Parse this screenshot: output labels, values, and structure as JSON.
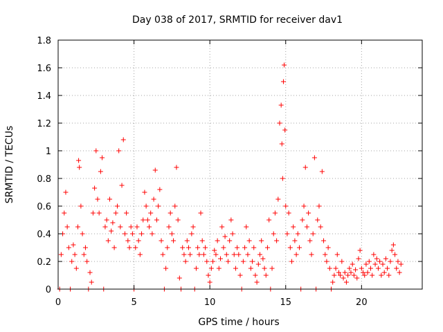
{
  "colors": {
    "series": "#ff0000",
    "axis": "#000000",
    "grid": "#a0a0a0"
  },
  "chart_data": {
    "type": "scatter",
    "title": "Day 038 of 2017, SRMTID for receiver dav1",
    "xlabel": "GPS time / hours",
    "ylabel": "SRMTID / TECUs",
    "xlim": [
      0,
      24
    ],
    "ylim": [
      0,
      1.8
    ],
    "xticks": [
      0,
      5,
      10,
      15,
      20
    ],
    "yticks": [
      0,
      0.2,
      0.4,
      0.6,
      0.8,
      1,
      1.2,
      1.4,
      1.6,
      1.8
    ],
    "xtick_labels": [
      "0",
      "5",
      "10",
      "15",
      "20"
    ],
    "ytick_labels": [
      "0",
      "0.2",
      "0.4",
      "0.6",
      "0.8",
      "1",
      "1.2",
      "1.4",
      "1.6",
      "1.8"
    ],
    "grid": true,
    "marker": "plus",
    "series": [
      {
        "name": "SRMTID",
        "points": [
          [
            0.1,
            0.0
          ],
          [
            0.2,
            0.25
          ],
          [
            0.3,
            0.4
          ],
          [
            0.4,
            0.55
          ],
          [
            0.5,
            0.7
          ],
          [
            0.6,
            0.45
          ],
          [
            0.7,
            0.3
          ],
          [
            0.8,
            0.0
          ],
          [
            0.9,
            0.2
          ],
          [
            1.0,
            0.32
          ],
          [
            1.1,
            0.25
          ],
          [
            1.2,
            0.15
          ],
          [
            1.3,
            0.45
          ],
          [
            1.35,
            0.93
          ],
          [
            1.4,
            0.88
          ],
          [
            1.5,
            0.6
          ],
          [
            1.6,
            0.4
          ],
          [
            1.7,
            0.25
          ],
          [
            1.8,
            0.3
          ],
          [
            1.9,
            0.2
          ],
          [
            2.0,
            0.0
          ],
          [
            2.1,
            0.12
          ],
          [
            2.2,
            0.05
          ],
          [
            2.3,
            0.55
          ],
          [
            2.4,
            0.73
          ],
          [
            2.5,
            1.0
          ],
          [
            2.6,
            0.65
          ],
          [
            2.7,
            0.55
          ],
          [
            2.8,
            0.85
          ],
          [
            2.9,
            0.95
          ],
          [
            3.0,
            0.0
          ],
          [
            3.1,
            0.45
          ],
          [
            3.2,
            0.5
          ],
          [
            3.3,
            0.35
          ],
          [
            3.4,
            0.65
          ],
          [
            3.5,
            0.42
          ],
          [
            3.6,
            0.48
          ],
          [
            3.7,
            0.3
          ],
          [
            3.8,
            0.55
          ],
          [
            3.9,
            0.6
          ],
          [
            4.0,
            1.0
          ],
          [
            4.1,
            0.45
          ],
          [
            4.2,
            0.75
          ],
          [
            4.3,
            1.08
          ],
          [
            4.4,
            0.4
          ],
          [
            4.5,
            0.55
          ],
          [
            4.6,
            0.35
          ],
          [
            4.7,
            0.3
          ],
          [
            4.8,
            0.45
          ],
          [
            4.9,
            0.4
          ],
          [
            5.0,
            0.0
          ],
          [
            5.1,
            0.3
          ],
          [
            5.2,
            0.45
          ],
          [
            5.3,
            0.35
          ],
          [
            5.4,
            0.25
          ],
          [
            5.5,
            0.4
          ],
          [
            5.6,
            0.5
          ],
          [
            5.7,
            0.7
          ],
          [
            5.8,
            0.6
          ],
          [
            5.9,
            0.5
          ],
          [
            6.0,
            0.45
          ],
          [
            6.1,
            0.55
          ],
          [
            6.2,
            0.4
          ],
          [
            6.3,
            0.65
          ],
          [
            6.4,
            0.86
          ],
          [
            6.5,
            0.5
          ],
          [
            6.6,
            0.6
          ],
          [
            6.7,
            0.72
          ],
          [
            6.8,
            0.35
          ],
          [
            6.9,
            0.25
          ],
          [
            7.0,
            0.0
          ],
          [
            7.1,
            0.15
          ],
          [
            7.2,
            0.3
          ],
          [
            7.3,
            0.45
          ],
          [
            7.4,
            0.55
          ],
          [
            7.5,
            0.4
          ],
          [
            7.6,
            0.35
          ],
          [
            7.7,
            0.6
          ],
          [
            7.8,
            0.88
          ],
          [
            7.9,
            0.5
          ],
          [
            8.0,
            0.08
          ],
          [
            8.1,
            0.0
          ],
          [
            8.2,
            0.3
          ],
          [
            8.3,
            0.25
          ],
          [
            8.4,
            0.2
          ],
          [
            8.5,
            0.35
          ],
          [
            8.6,
            0.3
          ],
          [
            8.7,
            0.25
          ],
          [
            8.8,
            0.4
          ],
          [
            8.9,
            0.45
          ],
          [
            9.0,
            0.0
          ],
          [
            9.1,
            0.15
          ],
          [
            9.2,
            0.3
          ],
          [
            9.3,
            0.25
          ],
          [
            9.4,
            0.55
          ],
          [
            9.5,
            0.35
          ],
          [
            9.6,
            0.25
          ],
          [
            9.7,
            0.3
          ],
          [
            9.8,
            0.2
          ],
          [
            9.9,
            0.1
          ],
          [
            10.0,
            0.05
          ],
          [
            10.1,
            0.15
          ],
          [
            10.2,
            0.2
          ],
          [
            10.3,
            0.28
          ],
          [
            10.4,
            0.25
          ],
          [
            10.5,
            0.35
          ],
          [
            10.6,
            0.15
          ],
          [
            10.7,
            0.22
          ],
          [
            10.8,
            0.45
          ],
          [
            10.9,
            0.3
          ],
          [
            11.0,
            0.38
          ],
          [
            11.1,
            0.25
          ],
          [
            11.2,
            0.2
          ],
          [
            11.3,
            0.35
          ],
          [
            11.4,
            0.5
          ],
          [
            11.5,
            0.4
          ],
          [
            11.6,
            0.25
          ],
          [
            11.7,
            0.15
          ],
          [
            11.8,
            0.3
          ],
          [
            11.9,
            0.25
          ],
          [
            12.0,
            0.1
          ],
          [
            12.1,
            0.0
          ],
          [
            12.2,
            0.2
          ],
          [
            12.3,
            0.3
          ],
          [
            12.4,
            0.45
          ],
          [
            12.5,
            0.25
          ],
          [
            12.6,
            0.35
          ],
          [
            12.7,
            0.15
          ],
          [
            12.8,
            0.2
          ],
          [
            12.9,
            0.3
          ],
          [
            13.0,
            0.1
          ],
          [
            13.1,
            0.05
          ],
          [
            13.2,
            0.18
          ],
          [
            13.3,
            0.25
          ],
          [
            13.4,
            0.35
          ],
          [
            13.5,
            0.22
          ],
          [
            13.6,
            0.15
          ],
          [
            13.7,
            0.1
          ],
          [
            13.8,
            0.3
          ],
          [
            13.9,
            0.5
          ],
          [
            14.0,
            0.0
          ],
          [
            14.1,
            0.15
          ],
          [
            14.2,
            0.4
          ],
          [
            14.3,
            0.55
          ],
          [
            14.4,
            0.35
          ],
          [
            14.5,
            0.65
          ],
          [
            14.6,
            1.2
          ],
          [
            14.7,
            1.33
          ],
          [
            14.75,
            1.05
          ],
          [
            14.8,
            0.8
          ],
          [
            14.85,
            1.5
          ],
          [
            14.9,
            1.62
          ],
          [
            14.95,
            1.15
          ],
          [
            15.0,
            0.6
          ],
          [
            15.1,
            0.4
          ],
          [
            15.2,
            0.55
          ],
          [
            15.3,
            0.3
          ],
          [
            15.4,
            0.2
          ],
          [
            15.5,
            0.45
          ],
          [
            15.6,
            0.35
          ],
          [
            15.7,
            0.25
          ],
          [
            15.8,
            0.4
          ],
          [
            15.9,
            0.3
          ],
          [
            16.0,
            0.0
          ],
          [
            16.1,
            0.5
          ],
          [
            16.2,
            0.6
          ],
          [
            16.3,
            0.88
          ],
          [
            16.4,
            0.45
          ],
          [
            16.5,
            0.55
          ],
          [
            16.6,
            0.35
          ],
          [
            16.7,
            0.25
          ],
          [
            16.8,
            0.4
          ],
          [
            16.9,
            0.95
          ],
          [
            17.0,
            0.0
          ],
          [
            17.1,
            0.5
          ],
          [
            17.2,
            0.6
          ],
          [
            17.3,
            0.45
          ],
          [
            17.4,
            0.85
          ],
          [
            17.5,
            0.35
          ],
          [
            17.6,
            0.25
          ],
          [
            17.7,
            0.2
          ],
          [
            17.8,
            0.3
          ],
          [
            17.9,
            0.15
          ],
          [
            18.0,
            0.0
          ],
          [
            18.1,
            0.05
          ],
          [
            18.2,
            0.1
          ],
          [
            18.3,
            0.15
          ],
          [
            18.4,
            0.25
          ],
          [
            18.5,
            0.12
          ],
          [
            18.6,
            0.1
          ],
          [
            18.7,
            0.2
          ],
          [
            18.8,
            0.08
          ],
          [
            18.9,
            0.12
          ],
          [
            19.0,
            0.05
          ],
          [
            19.1,
            0.1
          ],
          [
            19.2,
            0.15
          ],
          [
            19.3,
            0.12
          ],
          [
            19.4,
            0.18
          ],
          [
            19.5,
            0.1
          ],
          [
            19.6,
            0.14
          ],
          [
            19.7,
            0.08
          ],
          [
            19.8,
            0.22
          ],
          [
            19.9,
            0.28
          ],
          [
            20.0,
            0.15
          ],
          [
            20.1,
            0.12
          ],
          [
            20.2,
            0.1
          ],
          [
            20.3,
            0.18
          ],
          [
            20.4,
            0.12
          ],
          [
            20.5,
            0.2
          ],
          [
            20.6,
            0.15
          ],
          [
            20.7,
            0.1
          ],
          [
            20.8,
            0.25
          ],
          [
            20.9,
            0.18
          ],
          [
            21.0,
            0.22
          ],
          [
            21.1,
            0.15
          ],
          [
            21.2,
            0.2
          ],
          [
            21.3,
            0.1
          ],
          [
            21.4,
            0.18
          ],
          [
            21.5,
            0.12
          ],
          [
            21.6,
            0.22
          ],
          [
            21.7,
            0.15
          ],
          [
            21.8,
            0.1
          ],
          [
            21.9,
            0.2
          ],
          [
            22.0,
            0.28
          ],
          [
            22.1,
            0.32
          ],
          [
            22.2,
            0.25
          ],
          [
            22.3,
            0.15
          ],
          [
            22.4,
            0.2
          ],
          [
            22.5,
            0.12
          ],
          [
            22.6,
            0.18
          ]
        ]
      }
    ]
  }
}
